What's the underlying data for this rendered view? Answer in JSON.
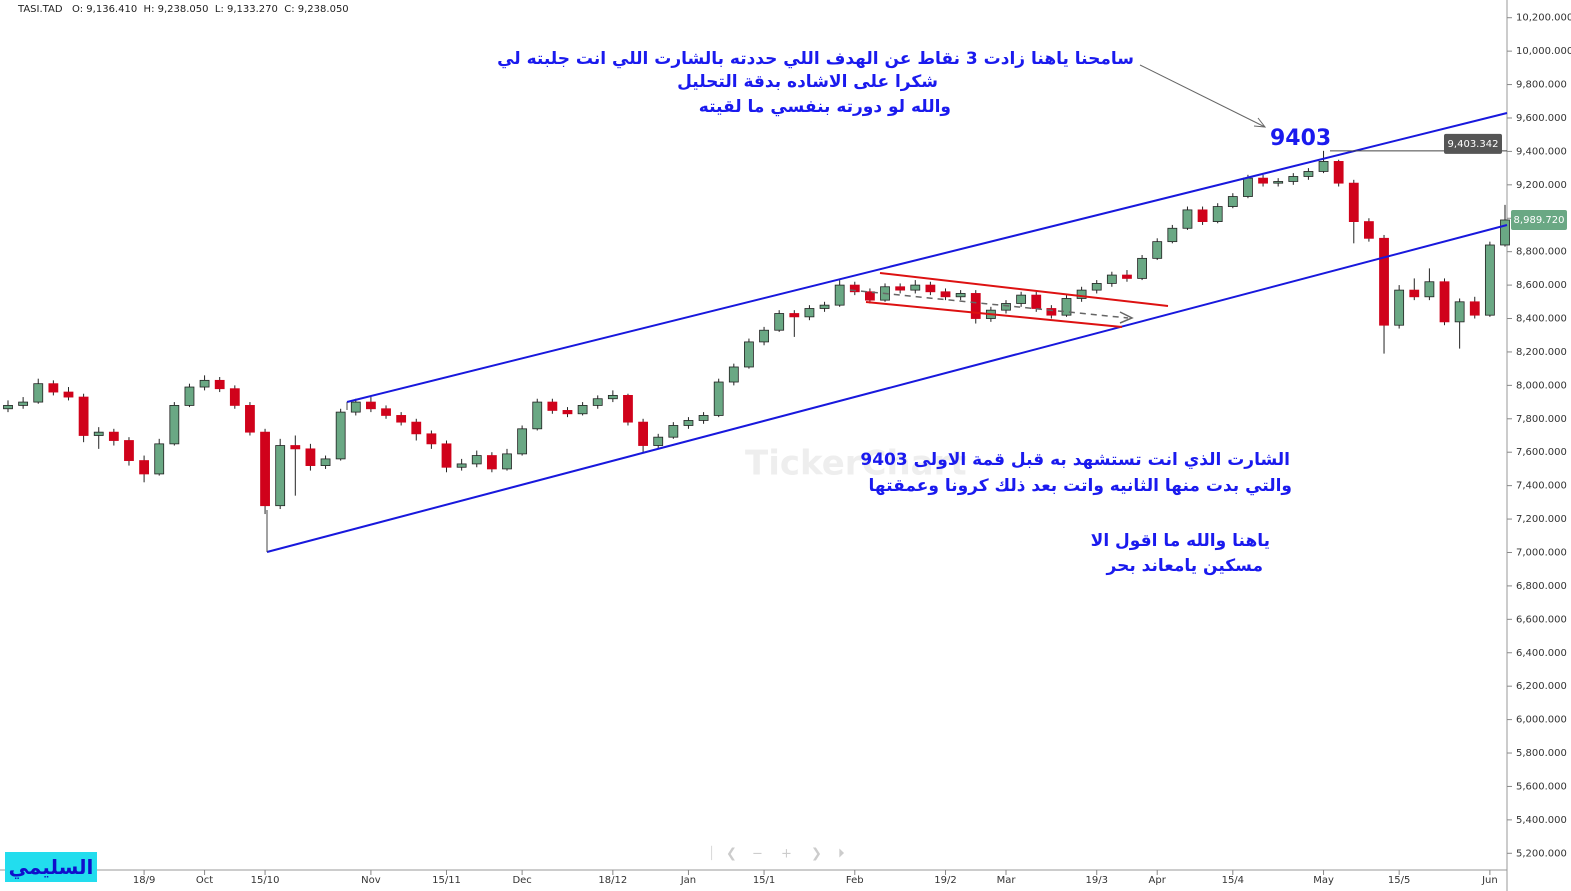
{
  "chart_data": {
    "type": "candlestick",
    "header": "TASI.TAD   O: 9,136.410  H: 9,238.050  L: 9,133.270  C: 9,238.050",
    "annotations": [
      "سامحنا ياهنا زادت 3 نقاط عن الهدف اللي حددته بالشارت اللي انت جلبته لي",
      "شكرا على الاشاده بدقة التحليل",
      "والله لو دورته بنفسي ما لقيته",
      "9403",
      "الشارت الذي انت تستشهد به قبل قمة  الاولى 9403",
      "والتي بدت منها الثانيه  واتت بعد ذلك كرونا وعمقتها",
      "ياهنا والله ما اقول الا",
      "مسكين يامعاند بحر"
    ],
    "signature": "السليمي",
    "watermark": "TickerChart",
    "up_color": "#6aa884",
    "down_color": "#d0021b",
    "categories": [
      null,
      null,
      null,
      null,
      null,
      null,
      null,
      null,
      null,
      "18/9",
      null,
      null,
      null,
      "Oct",
      null,
      null,
      null,
      "15/10",
      null,
      null,
      null,
      null,
      null,
      null,
      "Nov",
      null,
      null,
      null,
      null,
      "15/11",
      null,
      null,
      null,
      null,
      "Dec",
      null,
      null,
      null,
      null,
      null,
      "18/12",
      null,
      null,
      null,
      null,
      "Jan",
      null,
      null,
      null,
      null,
      "15/1",
      null,
      null,
      null,
      null,
      null,
      "Feb",
      null,
      null,
      null,
      null,
      null,
      "19/2",
      null,
      null,
      null,
      "Mar",
      null,
      null,
      null,
      null,
      null,
      "19/3",
      null,
      null,
      null,
      "Apr",
      null,
      null,
      null,
      null,
      "15/4",
      null,
      null,
      null,
      null,
      null,
      "May",
      null,
      null,
      null,
      null,
      "15/5",
      null,
      null,
      null,
      null,
      null,
      "Jun",
      null
    ],
    "ohlc": [
      [
        7860,
        7910,
        7840,
        7880
      ],
      [
        7880,
        7930,
        7860,
        7900
      ],
      [
        7900,
        8040,
        7890,
        8010
      ],
      [
        8010,
        8030,
        7940,
        7960
      ],
      [
        7960,
        7990,
        7910,
        7930
      ],
      [
        7930,
        7950,
        7660,
        7700
      ],
      [
        7700,
        7750,
        7620,
        7720
      ],
      [
        7720,
        7740,
        7640,
        7670
      ],
      [
        7670,
        7690,
        7520,
        7550
      ],
      [
        7550,
        7580,
        7420,
        7470
      ],
      [
        7470,
        7680,
        7460,
        7650
      ],
      [
        7650,
        7900,
        7640,
        7880
      ],
      [
        7880,
        8010,
        7870,
        7990
      ],
      [
        7990,
        8060,
        7970,
        8030
      ],
      [
        8030,
        8050,
        7960,
        7980
      ],
      [
        7980,
        8000,
        7860,
        7880
      ],
      [
        7880,
        7900,
        7700,
        7720
      ],
      [
        7720,
        7740,
        7230,
        7280
      ],
      [
        7280,
        7680,
        7260,
        7640
      ],
      [
        7640,
        7700,
        7340,
        7620
      ],
      [
        7620,
        7650,
        7490,
        7520
      ],
      [
        7520,
        7580,
        7500,
        7560
      ],
      [
        7560,
        7860,
        7550,
        7840
      ],
      [
        7840,
        7920,
        7820,
        7900
      ],
      [
        7900,
        7930,
        7840,
        7860
      ],
      [
        7860,
        7880,
        7800,
        7820
      ],
      [
        7820,
        7840,
        7760,
        7780
      ],
      [
        7780,
        7800,
        7670,
        7710
      ],
      [
        7710,
        7730,
        7620,
        7650
      ],
      [
        7650,
        7670,
        7480,
        7510
      ],
      [
        7510,
        7560,
        7490,
        7530
      ],
      [
        7530,
        7610,
        7510,
        7580
      ],
      [
        7580,
        7600,
        7480,
        7500
      ],
      [
        7500,
        7620,
        7490,
        7590
      ],
      [
        7590,
        7760,
        7580,
        7740
      ],
      [
        7740,
        7920,
        7730,
        7900
      ],
      [
        7900,
        7920,
        7830,
        7850
      ],
      [
        7850,
        7870,
        7810,
        7830
      ],
      [
        7830,
        7900,
        7820,
        7880
      ],
      [
        7880,
        7940,
        7860,
        7920
      ],
      [
        7920,
        7970,
        7900,
        7940
      ],
      [
        7940,
        7950,
        7760,
        7780
      ],
      [
        7780,
        7800,
        7600,
        7640
      ],
      [
        7640,
        7710,
        7620,
        7690
      ],
      [
        7690,
        7780,
        7680,
        7760
      ],
      [
        7760,
        7810,
        7740,
        7790
      ],
      [
        7790,
        7840,
        7770,
        7820
      ],
      [
        7820,
        8040,
        7810,
        8020
      ],
      [
        8020,
        8130,
        8000,
        8110
      ],
      [
        8110,
        8280,
        8100,
        8260
      ],
      [
        8260,
        8350,
        8240,
        8330
      ],
      [
        8330,
        8450,
        8320,
        8430
      ],
      [
        8430,
        8450,
        8290,
        8410
      ],
      [
        8410,
        8480,
        8390,
        8460
      ],
      [
        8460,
        8500,
        8440,
        8480
      ],
      [
        8480,
        8630,
        8470,
        8600
      ],
      [
        8600,
        8620,
        8540,
        8560
      ],
      [
        8560,
        8580,
        8490,
        8510
      ],
      [
        8510,
        8610,
        8500,
        8590
      ],
      [
        8590,
        8610,
        8550,
        8570
      ],
      [
        8570,
        8630,
        8550,
        8600
      ],
      [
        8600,
        8620,
        8540,
        8560
      ],
      [
        8560,
        8580,
        8510,
        8530
      ],
      [
        8530,
        8570,
        8510,
        8550
      ],
      [
        8550,
        8570,
        8370,
        8400
      ],
      [
        8400,
        8470,
        8380,
        8450
      ],
      [
        8450,
        8510,
        8430,
        8490
      ],
      [
        8490,
        8560,
        8470,
        8540
      ],
      [
        8540,
        8560,
        8440,
        8460
      ],
      [
        8460,
        8480,
        8400,
        8420
      ],
      [
        8420,
        8540,
        8410,
        8520
      ],
      [
        8520,
        8590,
        8500,
        8570
      ],
      [
        8570,
        8630,
        8550,
        8610
      ],
      [
        8610,
        8680,
        8590,
        8660
      ],
      [
        8660,
        8690,
        8620,
        8640
      ],
      [
        8640,
        8780,
        8630,
        8760
      ],
      [
        8760,
        8880,
        8750,
        8860
      ],
      [
        8860,
        8960,
        8850,
        8940
      ],
      [
        8940,
        9070,
        8930,
        9050
      ],
      [
        9050,
        9070,
        8960,
        8980
      ],
      [
        8980,
        9090,
        8970,
        9070
      ],
      [
        9070,
        9150,
        9060,
        9130
      ],
      [
        9130,
        9260,
        9120,
        9240
      ],
      [
        9240,
        9260,
        9190,
        9210
      ],
      [
        9210,
        9240,
        9190,
        9220
      ],
      [
        9220,
        9270,
        9200,
        9250
      ],
      [
        9250,
        9300,
        9230,
        9280
      ],
      [
        9280,
        9403.342,
        9270,
        9340
      ],
      [
        9340,
        9350,
        9190,
        9210
      ],
      [
        9210,
        9230,
        8850,
        8980
      ],
      [
        8980,
        9000,
        8860,
        8880
      ],
      [
        8880,
        8900,
        8190,
        8360
      ],
      [
        8360,
        8600,
        8340,
        8570
      ],
      [
        8570,
        8640,
        8510,
        8530
      ],
      [
        8530,
        8700,
        8510,
        8620
      ],
      [
        8620,
        8640,
        8360,
        8380
      ],
      [
        8380,
        8520,
        8220,
        8500
      ],
      [
        8500,
        8530,
        8400,
        8420
      ],
      [
        8420,
        8860,
        8410,
        8840
      ],
      [
        8840,
        9080,
        8830,
        8989.72
      ]
    ],
    "price_tags": [
      {
        "value": 9403.342,
        "label": "9,403.342",
        "color": "#555555"
      },
      {
        "value": 8989.72,
        "label": "8,989.720",
        "color": "#6aa884"
      }
    ],
    "ylim": [
      5100,
      10300
    ],
    "yticks": [
      {
        "value": 5200,
        "label": "5,200.000"
      },
      {
        "value": 5400,
        "label": "5,400.000"
      },
      {
        "value": 5600,
        "label": "5,600.000"
      },
      {
        "value": 5800,
        "label": "5,800.000"
      },
      {
        "value": 6000,
        "label": "6,000.000"
      },
      {
        "value": 6200,
        "label": "6,200.000"
      },
      {
        "value": 6400,
        "label": "6,400.000"
      },
      {
        "value": 6600,
        "label": "6,600.000"
      },
      {
        "value": 6800,
        "label": "6,800.000"
      },
      {
        "value": 7000,
        "label": "7,000.000"
      },
      {
        "value": 7200,
        "label": "7,200.000"
      },
      {
        "value": 7400,
        "label": "7,400.000"
      },
      {
        "value": 7600,
        "label": "7,600.000"
      },
      {
        "value": 7800,
        "label": "7,800.000"
      },
      {
        "value": 8000,
        "label": "8,000.000"
      },
      {
        "value": 8200,
        "label": "8,200.000"
      },
      {
        "value": 8400,
        "label": "8,400.000"
      },
      {
        "value": 8600,
        "label": "8,600.000"
      },
      {
        "value": 8800,
        "label": "8,800.000"
      },
      {
        "value": 9000,
        "label": "9,000.000"
      },
      {
        "value": 9200,
        "label": "9,200.000"
      },
      {
        "value": 9400,
        "label": "9,400.000"
      },
      {
        "value": 9600,
        "label": "9,600.000"
      },
      {
        "value": 9800,
        "label": "9,800.000"
      },
      {
        "value": 10000,
        "label": "10,000.000"
      },
      {
        "value": 10200,
        "label": "10,200.000"
      }
    ]
  }
}
